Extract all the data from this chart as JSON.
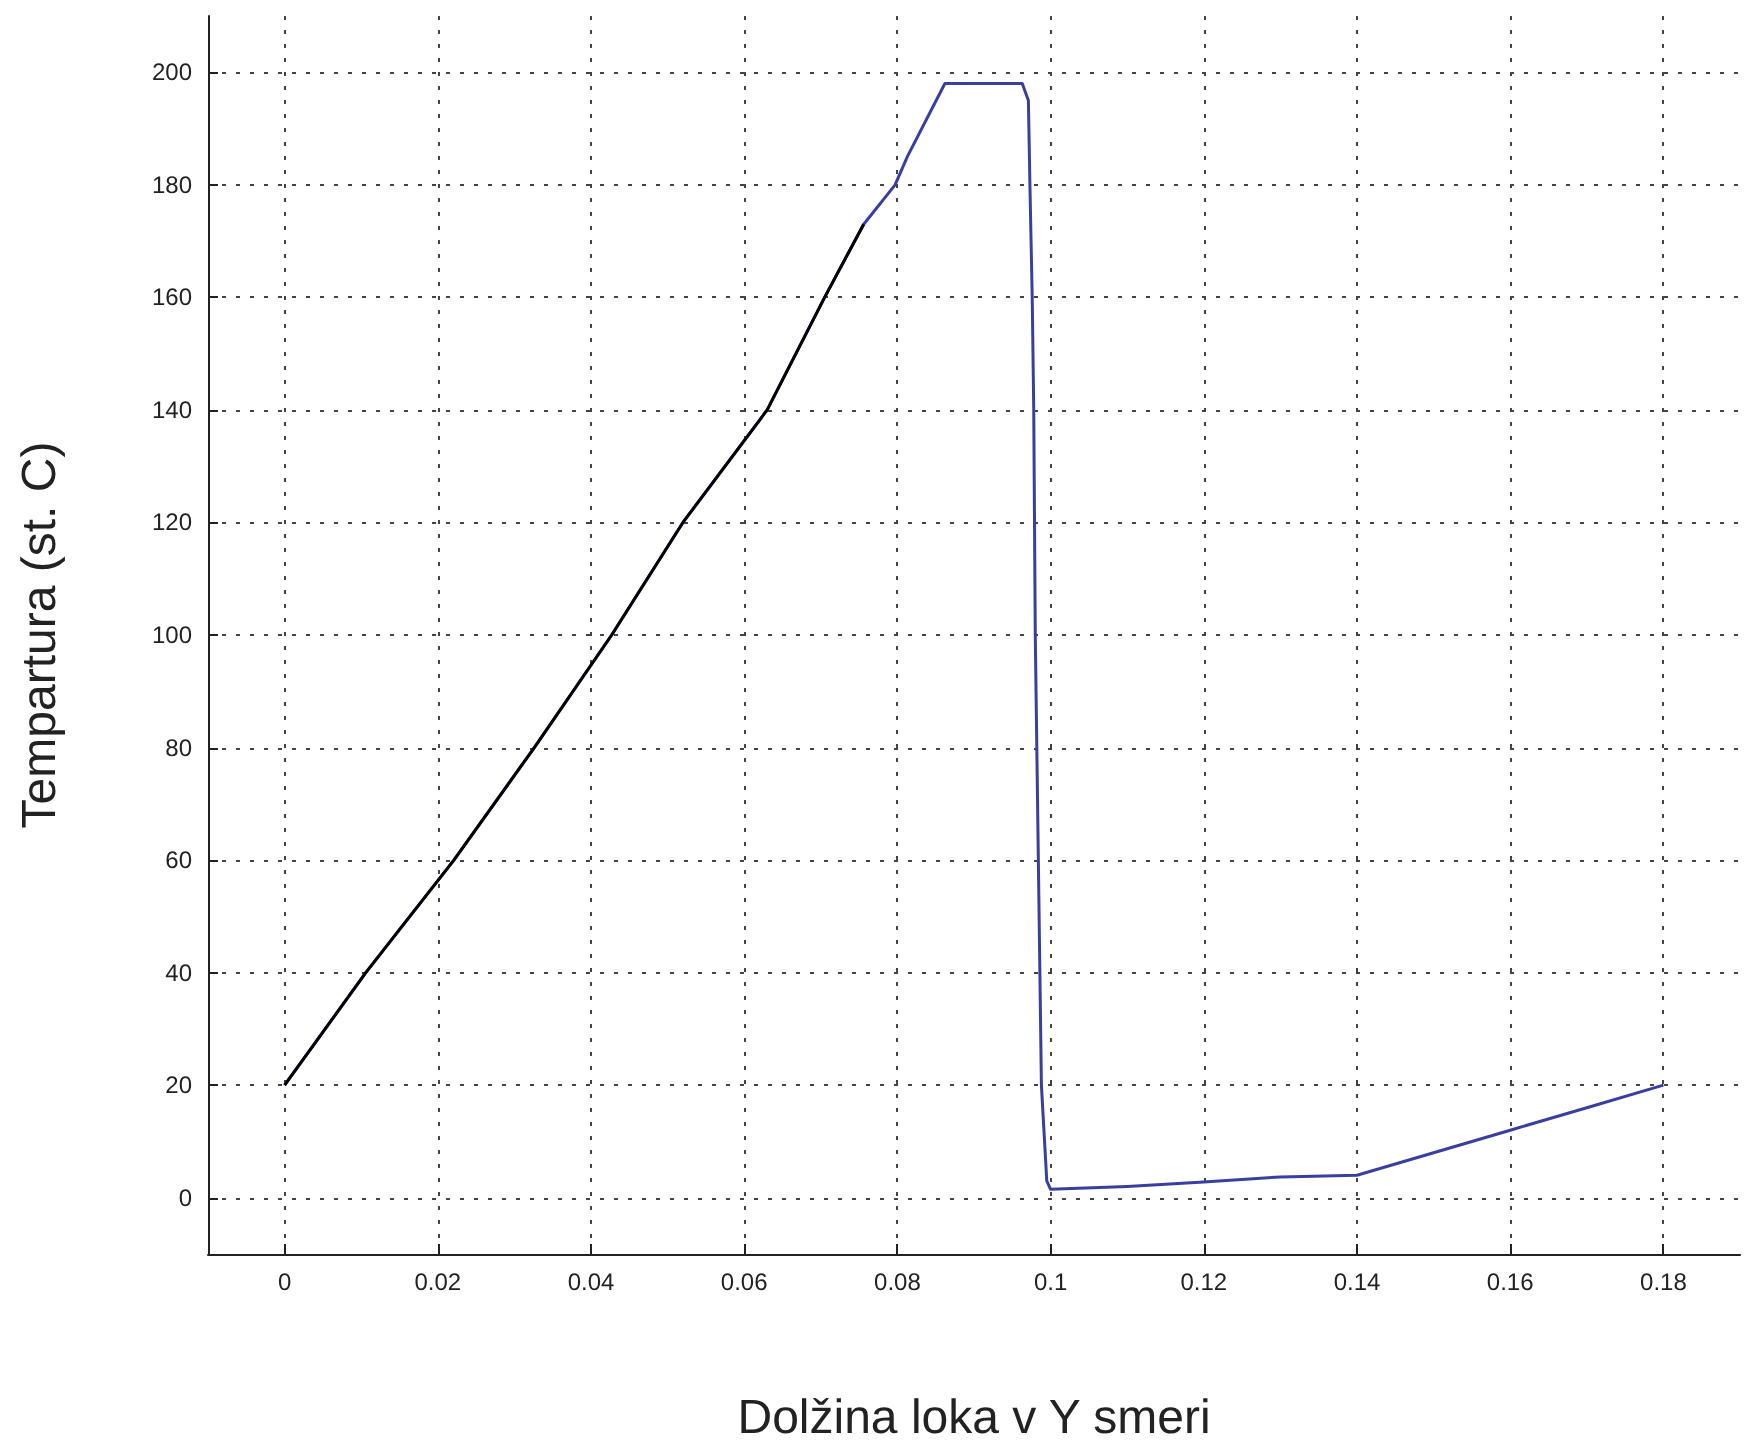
{
  "chart_data": {
    "type": "line",
    "xlabel": "Dolžina loka v Y smeri",
    "ylabel": "Tempartura (st. C)",
    "xlim": [
      -0.01,
      0.19
    ],
    "ylim": [
      -10,
      210
    ],
    "xticks": [
      0,
      0.02,
      0.04,
      0.06,
      0.08,
      0.1,
      0.12,
      0.14,
      0.16,
      0.18
    ],
    "yticks": [
      0,
      20,
      40,
      60,
      80,
      100,
      120,
      140,
      160,
      180,
      200
    ],
    "grid": true,
    "marker": "none",
    "line_style": "solid",
    "series": [
      {
        "color": "#3a3f9e",
        "x": [
          0,
          0.0106,
          0.0221,
          0.0326,
          0.0427,
          0.052,
          0.063,
          0.0705,
          0.0756,
          0.0797,
          0.0813,
          0.0862,
          0.0963,
          0.0971,
          0.0973,
          0.0976,
          0.0978,
          0.098,
          0.0988,
          0.0995,
          0.1,
          0.11,
          0.12,
          0.13,
          0.14,
          0.15,
          0.16,
          0.17,
          0.18
        ],
        "values": [
          20,
          40,
          60,
          80,
          100,
          120,
          140,
          160,
          173,
          180,
          185,
          198,
          198,
          195,
          180,
          160,
          140,
          100,
          20,
          3,
          1.5,
          2,
          2.8,
          3.7,
          4,
          8,
          12,
          16,
          20
        ]
      },
      {
        "color": "#000000",
        "x": [
          0,
          0.0106,
          0.0221,
          0.0326,
          0.0427,
          0.052,
          0.063,
          0.0705,
          0.0756
        ],
        "values": [
          20,
          40,
          60,
          80,
          100,
          120,
          140,
          160,
          173
        ]
      }
    ]
  }
}
